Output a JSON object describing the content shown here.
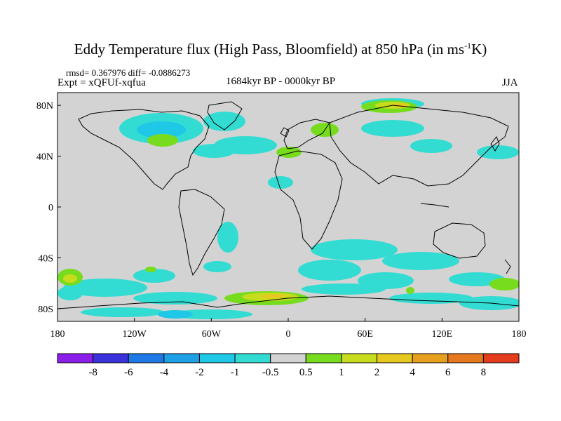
{
  "title": {
    "main": "Eddy Temperature flux (High Pass, Bloomfield) at 850 hPa (in ms",
    "sup": "-1",
    "end": "K)"
  },
  "subtitle": {
    "stats": "rmsd= 0.367976  diff= -0.0886273",
    "expt": "Expt = xQFUf-xqfua",
    "period": "1684kyr BP - 0000kyr BP",
    "season": "JJA"
  },
  "axes": {
    "y_ticks": [
      {
        "label": "80N",
        "lat": 80
      },
      {
        "label": "40N",
        "lat": 40
      },
      {
        "label": "0",
        "lat": 0
      },
      {
        "label": "40S",
        "lat": -40
      },
      {
        "label": "80S",
        "lat": -80
      }
    ],
    "x_ticks": [
      {
        "label": "180",
        "lon": -180
      },
      {
        "label": "120W",
        "lon": -120
      },
      {
        "label": "60W",
        "lon": -60
      },
      {
        "label": "0",
        "lon": 0
      },
      {
        "label": "60E",
        "lon": 60
      },
      {
        "label": "120E",
        "lon": 120
      },
      {
        "label": "180",
        "lon": 180
      }
    ]
  },
  "colorbar": {
    "colors": [
      "#8c1eea",
      "#3c32dc",
      "#1e78e6",
      "#1ea0e6",
      "#1ec8e6",
      "#33dcd2",
      "#d3d3d3",
      "#78dc1e",
      "#c8dc1e",
      "#e6c81e",
      "#e6a01e",
      "#e6781e",
      "#e63c1e"
    ],
    "labels": [
      "-8",
      "-6",
      "-4",
      "-2",
      "-1",
      "-0.5",
      "0.5",
      "1",
      "2",
      "4",
      "6",
      "8"
    ]
  },
  "colors": {
    "background": "#d3d3d3",
    "coast": "#000000"
  }
}
